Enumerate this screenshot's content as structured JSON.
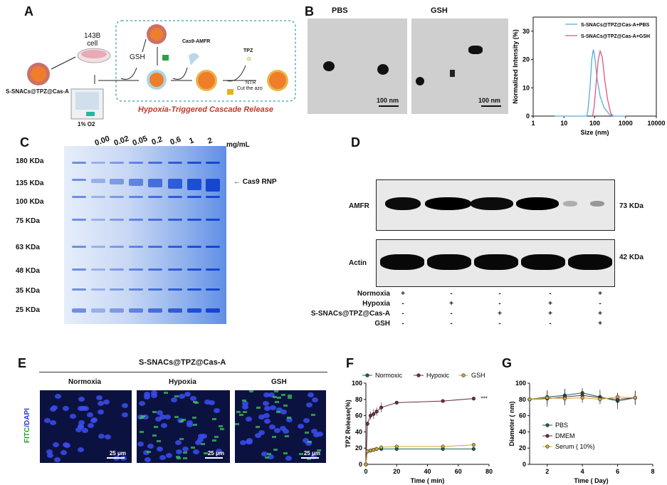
{
  "panels": {
    "a": "A",
    "b": "B",
    "c": "C",
    "d": "D",
    "e": "E",
    "f": "F",
    "g": "G"
  },
  "panel_a": {
    "cell_line": "143B",
    "cell_word": "cell",
    "nanoparticle": "S-SNACs@TPZ@Cas-A",
    "oxygen": "1% O2",
    "gsh": "GSH",
    "cas9": "Cas9-AMFR",
    "tpz": "TPZ",
    "ntr": "NTR",
    "cut": "Cut the azo",
    "caption": "Hypoxia-Triggered Cascade Release",
    "colors": {
      "box": "#3aa0a0",
      "caption": "#c0392b",
      "core": "#f07d2a",
      "shell": "#e8b84a"
    }
  },
  "panel_b": {
    "tem_labels": [
      "PBS",
      "GSH"
    ],
    "scale_bar": "100 nm"
  },
  "panel_c": {
    "concentrations": [
      "0.00",
      "0.02",
      "0.05",
      "0.2",
      "0.6",
      "1",
      "2"
    ],
    "unit": "mg/mL",
    "markers": [
      "180 KDa",
      "135 KDa",
      "100 KDa",
      "75 KDa",
      "63 KDa",
      "48 KDa",
      "35 KDa",
      "25 KDa"
    ],
    "band_label": "← Cas9 RNP"
  },
  "panel_d": {
    "blots": [
      {
        "name": "AMFR",
        "size": "73 KDa"
      },
      {
        "name": "Actin",
        "size": "42 KDa"
      }
    ],
    "conditions": [
      {
        "label": "Normoxia",
        "values": [
          "+",
          "-",
          "-",
          "-",
          "+"
        ]
      },
      {
        "label": "Hypoxia",
        "values": [
          "-",
          "+",
          "-",
          "+",
          "-"
        ]
      },
      {
        "label": "S-SNACs@TPZ@Cas-A",
        "values": [
          "-",
          "-",
          "+",
          "+",
          "+"
        ]
      },
      {
        "label": "GSH",
        "values": [
          "-",
          "-",
          "-",
          "-",
          "+"
        ]
      }
    ]
  },
  "panel_e": {
    "title": "S-SNACs@TPZ@Cas-A",
    "columns": [
      "Normoxia",
      "Hypoxia",
      "GSH"
    ],
    "row_label_fitc": "FITC",
    "row_label_sep": "/",
    "row_label_dapi": "DAPI",
    "scale_bar": "25 μm"
  },
  "chart_data": [
    {
      "id": "dls",
      "type": "line",
      "xlabel": "Size (nm)",
      "ylabel": "Normalized Intensity (%)",
      "xscale": "log",
      "xlim": [
        1,
        10000
      ],
      "ylim": [
        0,
        35
      ],
      "xticks": [
        "1",
        "10",
        "100",
        "1000",
        "10000"
      ],
      "yticks": [
        "0",
        "10",
        "20",
        "30"
      ],
      "legend": "top-right",
      "series": [
        {
          "name": "S-SNACs@TPZ@Cas-A+PBS",
          "color": "#5aa9dc",
          "x": [
            5,
            55,
            60,
            70,
            80,
            90,
            100,
            120,
            150,
            200,
            300,
            400,
            1000
          ],
          "y": [
            0,
            0,
            2,
            10,
            20,
            23.5,
            21,
            13,
            7,
            3,
            0.6,
            0,
            0
          ]
        },
        {
          "name": "S-SNACs@TPZ@Cas-A+GSH",
          "color": "#e0557f",
          "x": [
            85,
            95,
            110,
            130,
            150,
            175,
            210,
            260,
            330,
            400
          ],
          "y": [
            0,
            3,
            11,
            20,
            23,
            21,
            13,
            6,
            1,
            0
          ]
        }
      ]
    },
    {
      "id": "release",
      "type": "line",
      "xlabel": "Time ( min)",
      "ylabel": "TPZ Release(%)",
      "xlim": [
        0,
        80
      ],
      "ylim": [
        0,
        100
      ],
      "xticks": [
        "0",
        "20",
        "40",
        "60",
        "80"
      ],
      "yticks": [
        "0",
        "20",
        "40",
        "60",
        "80",
        "100"
      ],
      "legend": "top",
      "annotation": "***",
      "x": [
        0,
        1,
        3,
        5,
        7,
        10,
        20,
        50,
        70
      ],
      "series": [
        {
          "name": "Normoxic",
          "color": "#1f5e4b",
          "y": [
            0,
            16,
            17,
            18,
            19,
            19,
            19,
            19,
            19
          ],
          "err": [
            0,
            1,
            1,
            1,
            1,
            1.5,
            1.5,
            1.5,
            2
          ]
        },
        {
          "name": "Hypoxic",
          "color": "#6e2a43",
          "y": [
            0,
            50,
            60,
            62,
            65,
            70,
            76,
            78,
            81
          ],
          "err": [
            0,
            3,
            5,
            6,
            5,
            6,
            1,
            1,
            1
          ]
        },
        {
          "name": "GSH",
          "color": "#c9a83a",
          "y": [
            0,
            16,
            17,
            18,
            19,
            21,
            22,
            22,
            24
          ],
          "err": [
            0,
            1,
            1,
            1,
            1,
            1,
            1,
            1,
            1
          ]
        }
      ]
    },
    {
      "id": "stability",
      "type": "line",
      "xlabel": "Time ( Day)",
      "ylabel": "Diameter ( nm)",
      "xlim": [
        1,
        8
      ],
      "ylim": [
        0,
        100
      ],
      "xticks": [
        "2",
        "4",
        "6",
        "8"
      ],
      "yticks": [
        "0",
        "20",
        "40",
        "60",
        "80",
        "100"
      ],
      "legend": "bottom-left",
      "x": [
        1,
        2,
        3,
        4,
        5,
        6,
        7
      ],
      "series": [
        {
          "name": "PBS",
          "color": "#1f5e4b",
          "y": [
            80,
            83,
            85,
            88,
            83,
            78,
            82
          ],
          "err": [
            10,
            8,
            8,
            6,
            9,
            10,
            9
          ]
        },
        {
          "name": "DMEM",
          "color": "#6e2a43",
          "y": [
            80,
            81,
            83,
            85,
            82,
            80,
            82
          ],
          "err": [
            10,
            10,
            10,
            9,
            7,
            8,
            8
          ]
        },
        {
          "name": "Serum ( 10%)",
          "color": "#c9a83a",
          "y": [
            80,
            82,
            81,
            82,
            80,
            83,
            82
          ],
          "err": [
            10,
            8,
            8,
            6,
            5,
            5,
            8
          ]
        }
      ]
    }
  ]
}
